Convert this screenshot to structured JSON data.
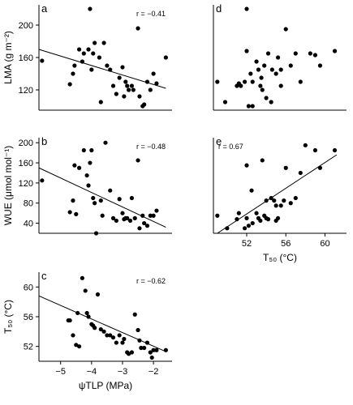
{
  "chart_data": [
    {
      "panel": "a",
      "type": "scatter",
      "r_label": "r = −0.41",
      "ylabel": "LMA (g m⁻²)",
      "ylim": [
        95,
        225
      ],
      "yticks": [
        120,
        160,
        200
      ],
      "xlim": [
        -5.7,
        -1.4
      ],
      "xticks": [],
      "xlabel": "",
      "x": [
        -5.6,
        -4.7,
        -4.6,
        -4.55,
        -4.4,
        -4.3,
        -4.25,
        -4.1,
        -4.05,
        -4.0,
        -3.95,
        -3.9,
        -3.75,
        -3.7,
        -3.6,
        -3.5,
        -3.4,
        -3.3,
        -3.2,
        -3.1,
        -3.0,
        -2.95,
        -2.9,
        -2.85,
        -2.8,
        -2.7,
        -2.65,
        -2.5,
        -2.45,
        -2.35,
        -2.3,
        -2.2,
        -2.1,
        -2.0,
        -1.9,
        -1.6
      ],
      "y": [
        156,
        127,
        140,
        150,
        170,
        155,
        165,
        170,
        220,
        145,
        165,
        178,
        160,
        105,
        178,
        150,
        145,
        125,
        115,
        135,
        148,
        112,
        130,
        125,
        120,
        125,
        120,
        196,
        112,
        100,
        102,
        130,
        120,
        140,
        128,
        160
      ],
      "fit": {
        "x": [
          -5.7,
          -1.6
        ],
        "y": [
          170,
          122
        ]
      }
    },
    {
      "panel": "b",
      "type": "scatter",
      "r_label": "r = −0.48",
      "ylabel": "WUE (μmol mol⁻¹)",
      "ylim": [
        20,
        210
      ],
      "yticks": [
        40,
        80,
        120,
        160,
        200
      ],
      "xlim": [
        -5.7,
        -1.4
      ],
      "xticks": [],
      "xlabel": "",
      "x": [
        -5.6,
        -4.7,
        -4.6,
        -4.55,
        -4.5,
        -4.4,
        -4.25,
        -4.15,
        -4.1,
        -4.05,
        -4.0,
        -3.95,
        -3.9,
        -3.85,
        -3.7,
        -3.65,
        -3.55,
        -3.4,
        -3.3,
        -3.2,
        -3.1,
        -3.0,
        -2.95,
        -2.9,
        -2.85,
        -2.75,
        -2.7,
        -2.6,
        -2.5,
        -2.45,
        -2.35,
        -2.3,
        -2.2,
        -2.1,
        -2.0,
        -1.9
      ],
      "y": [
        125,
        62,
        85,
        155,
        58,
        150,
        185,
        135,
        115,
        160,
        185,
        90,
        80,
        20,
        85,
        55,
        200,
        105,
        50,
        45,
        88,
        60,
        48,
        50,
        50,
        45,
        90,
        50,
        165,
        30,
        55,
        40,
        35,
        55,
        55,
        65
      ],
      "fit": {
        "x": [
          -5.7,
          -1.6
        ],
        "y": [
          150,
          32
        ]
      }
    },
    {
      "panel": "c",
      "type": "scatter",
      "r_label": "r = −0.62",
      "ylabel": "T₅₀ (°C)",
      "ylim": [
        50,
        62
      ],
      "yticks": [
        52,
        56,
        60
      ],
      "xlim": [
        -5.7,
        -1.4
      ],
      "xticks": [
        -5,
        -4,
        -3,
        -2
      ],
      "xlabel": "ψTLP (MPa)",
      "x": [
        -4.75,
        -4.7,
        -4.6,
        -4.5,
        -4.45,
        -4.4,
        -4.3,
        -4.2,
        -4.15,
        -4.1,
        -4.0,
        -3.95,
        -3.9,
        -3.8,
        -3.7,
        -3.6,
        -3.5,
        -3.4,
        -3.3,
        -3.2,
        -3.1,
        -3.0,
        -2.95,
        -2.85,
        -2.8,
        -2.7,
        -2.6,
        -2.5,
        -2.45,
        -2.4,
        -2.3,
        -2.2,
        -2.1,
        -2.05,
        -2.0,
        -1.9,
        -1.6
      ],
      "y": [
        55.5,
        55.5,
        53.5,
        52.2,
        56.5,
        52.0,
        61.2,
        59.5,
        56.5,
        56.0,
        55.0,
        54.8,
        54.5,
        59.0,
        54.3,
        54.0,
        53.5,
        53.5,
        53.2,
        52.5,
        53.5,
        52.5,
        53.0,
        51.2,
        51.0,
        51.2,
        56.3,
        54.2,
        52.8,
        51.8,
        51.8,
        52.5,
        51.2,
        50.5,
        51.5,
        51.5,
        51.5
      ],
      "fit": {
        "x": [
          -5.7,
          -1.6
        ],
        "y": [
          58.8,
          51.3
        ]
      }
    },
    {
      "panel": "d",
      "type": "scatter",
      "r_label": "",
      "ylabel": "",
      "ylim": [
        95,
        225
      ],
      "yticks": [],
      "xlim": [
        48.6,
        62.2
      ],
      "xticks": [],
      "xlabel": "",
      "x": [
        49.0,
        49.8,
        51.0,
        51.2,
        51.4,
        51.8,
        52.0,
        52.0,
        52.2,
        52.4,
        52.6,
        52.6,
        53.0,
        53.2,
        53.4,
        53.5,
        53.6,
        53.8,
        54.0,
        54.2,
        54.5,
        54.6,
        55.0,
        55.2,
        55.5,
        55.5,
        56.0,
        56.5,
        57.0,
        57.5,
        58.5,
        59.0,
        59.5,
        61.0
      ],
      "y": [
        130,
        105,
        125,
        128,
        125,
        130,
        168,
        220,
        100,
        140,
        130,
        100,
        155,
        145,
        125,
        135,
        120,
        150,
        110,
        165,
        105,
        145,
        140,
        160,
        125,
        145,
        195,
        150,
        165,
        130,
        165,
        163,
        150,
        168
      ],
      "fit": null
    },
    {
      "panel": "e",
      "type": "scatter",
      "r_label": "r = 0.67",
      "ylabel": "",
      "ylim": [
        20,
        210
      ],
      "yticks": [],
      "xlim": [
        48.6,
        62.2
      ],
      "xticks": [
        52,
        56,
        60
      ],
      "xlabel": "T₅₀ (°C)",
      "x": [
        49.0,
        50.0,
        51.0,
        51.2,
        51.8,
        52.0,
        52.0,
        52.2,
        52.5,
        52.6,
        53.0,
        53.2,
        53.4,
        53.6,
        53.8,
        54.0,
        54.0,
        54.2,
        54.5,
        54.8,
        55.0,
        55.0,
        55.2,
        55.5,
        55.8,
        56.0,
        56.5,
        57.0,
        57.5,
        58.0,
        59.0,
        59.5,
        61.0
      ],
      "y": [
        55,
        30,
        48,
        60,
        30,
        50,
        155,
        35,
        105,
        40,
        60,
        50,
        45,
        165,
        55,
        50,
        85,
        48,
        90,
        85,
        45,
        75,
        50,
        75,
        85,
        150,
        80,
        90,
        140,
        195,
        185,
        150,
        185
      ],
      "fit": {
        "x": [
          49.0,
          61.2
        ],
        "y": [
          20,
          176
        ]
      }
    }
  ]
}
